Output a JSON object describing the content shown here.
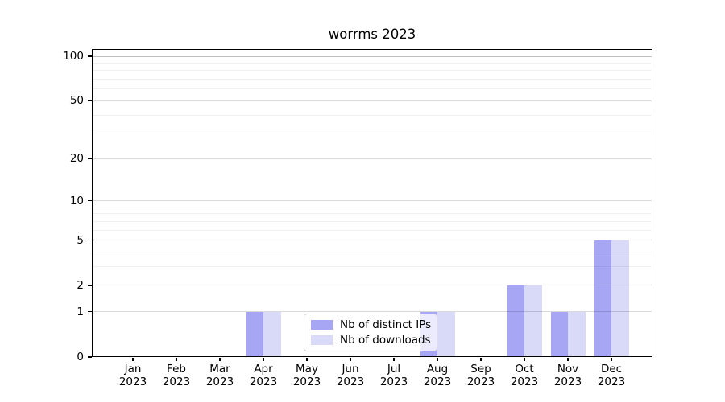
{
  "title": "worrms 2023",
  "legend": {
    "items": [
      {
        "label": "Nb of distinct IPs",
        "color": "#a6a6f4"
      },
      {
        "label": "Nb of downloads",
        "color": "#d9d9f8"
      }
    ]
  },
  "chart_data": {
    "type": "bar",
    "title": "worrms 2023",
    "categories": [
      {
        "month": "Jan",
        "year": "2023"
      },
      {
        "month": "Feb",
        "year": "2023"
      },
      {
        "month": "Mar",
        "year": "2023"
      },
      {
        "month": "Apr",
        "year": "2023"
      },
      {
        "month": "May",
        "year": "2023"
      },
      {
        "month": "Jun",
        "year": "2023"
      },
      {
        "month": "Jul",
        "year": "2023"
      },
      {
        "month": "Aug",
        "year": "2023"
      },
      {
        "month": "Sep",
        "year": "2023"
      },
      {
        "month": "Oct",
        "year": "2023"
      },
      {
        "month": "Nov",
        "year": "2023"
      },
      {
        "month": "Dec",
        "year": "2023"
      }
    ],
    "series": [
      {
        "name": "Nb of distinct IPs",
        "color": "#a6a6f4",
        "values": [
          0,
          0,
          0,
          1,
          0,
          0,
          0,
          1,
          0,
          2,
          1,
          5
        ]
      },
      {
        "name": "Nb of downloads",
        "color": "#d9d9f8",
        "values": [
          0,
          0,
          0,
          1,
          0,
          0,
          0,
          1,
          0,
          2,
          1,
          5
        ]
      }
    ],
    "xlabel": "",
    "ylabel": "",
    "y_scale": "log10(1+v)",
    "y_ticks": [
      0,
      1,
      2,
      5,
      10,
      20,
      50,
      100
    ],
    "y_minor_ticks": [
      3,
      4,
      6,
      7,
      8,
      9,
      30,
      40,
      60,
      70,
      80,
      90
    ],
    "ylim": [
      0,
      112
    ],
    "grid": true,
    "legend_position": "lower center"
  }
}
